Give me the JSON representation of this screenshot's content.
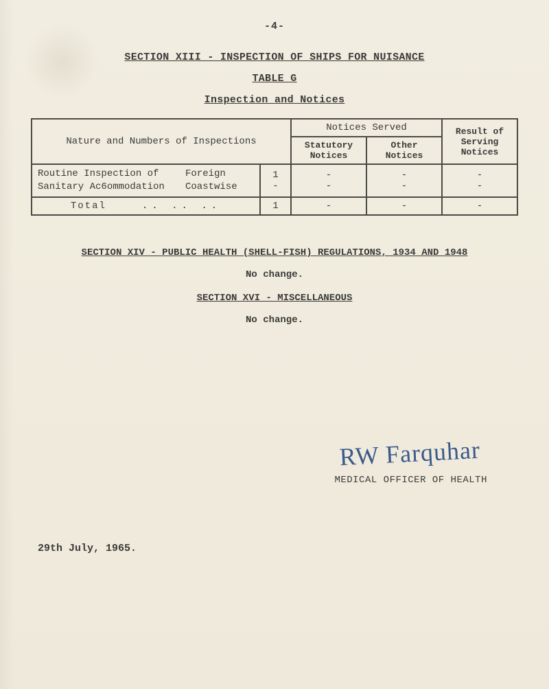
{
  "page_number": "-4-",
  "section13_title": "SECTION XIII - INSPECTION OF SHIPS FOR NUISANCE",
  "table_label": "TABLE G",
  "table_subtitle": "Inspection and Notices",
  "table": {
    "columns": {
      "nature": "Nature and Numbers of Inspections",
      "notices_served": "Notices Served",
      "statutory": "Statutory Notices",
      "other": "Other Notices",
      "result": "Result of Serving Notices"
    },
    "rows": [
      {
        "label": "Routine Inspection of Sanitary Ac6ommodation",
        "category1": "Foreign",
        "value1": "1",
        "category2": "Coastwise",
        "value2": "-",
        "statutory": "-",
        "other": "-",
        "result": "-",
        "statutory2": "-",
        "other2": "-",
        "result2": "-"
      }
    ],
    "total": {
      "label": "Total",
      "dots": "..   ..   ..",
      "value": "1",
      "statutory": "-",
      "other": "-",
      "result": "-"
    },
    "border_color": "#4a4a46",
    "font_size": 14
  },
  "section14_title": "SECTION XIV - PUBLIC HEALTH (SHELL-FISH) REGULATIONS, 1934 AND 1948",
  "section14_body": "No change.",
  "section16_title": "SECTION XVI - MISCELLANEOUS",
  "section16_body": "No change.",
  "signature_text": "RW Farquhar",
  "moh_label": "MEDICAL OFFICER OF HEALTH",
  "date": "29th July, 1965.",
  "colors": {
    "paper": "#f1ede0",
    "ink": "#3a3a38",
    "pen": "#3a5a8a"
  }
}
